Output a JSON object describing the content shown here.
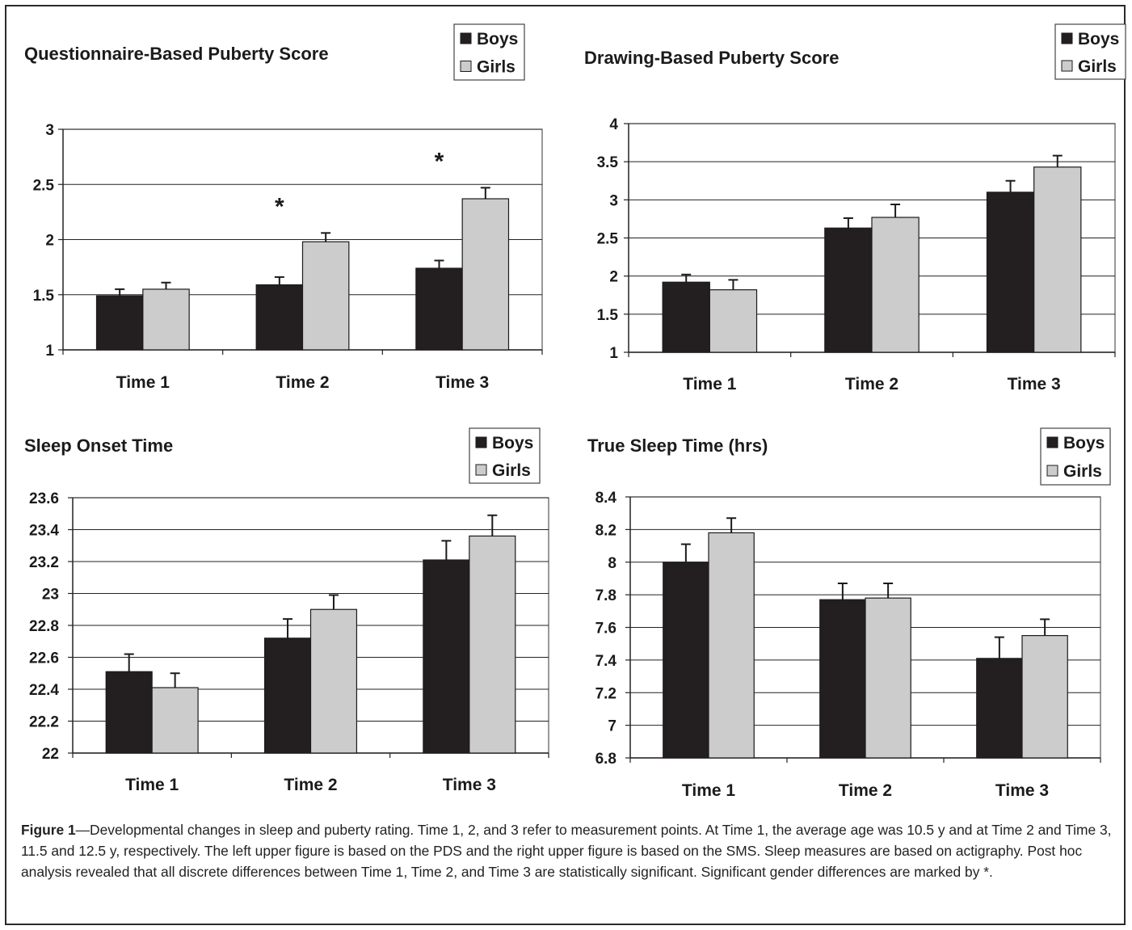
{
  "chart_data": [
    {
      "type": "bar",
      "title": "Questionnaire-Based Puberty Score",
      "categories": [
        "Time 1",
        "Time 2",
        "Time 3"
      ],
      "series": [
        {
          "name": "Boys",
          "values": [
            1.49,
            1.59,
            1.74
          ],
          "errors": [
            0.06,
            0.07,
            0.07
          ]
        },
        {
          "name": "Girls",
          "values": [
            1.55,
            1.98,
            2.37
          ],
          "errors": [
            0.06,
            0.08,
            0.1
          ]
        }
      ],
      "ylim": [
        1,
        3
      ],
      "yticks": [
        "1",
        "1.5",
        "2",
        "2.5",
        "3"
      ],
      "grid": true,
      "legend": "top-right",
      "annotations": [
        {
          "category": "Time 2",
          "text": "*"
        },
        {
          "category": "Time 3",
          "text": "*"
        }
      ]
    },
    {
      "type": "bar",
      "title": "Drawing-Based Puberty Score",
      "categories": [
        "Time 1",
        "Time 2",
        "Time 3"
      ],
      "series": [
        {
          "name": "Boys",
          "values": [
            1.92,
            2.63,
            3.1
          ],
          "errors": [
            0.1,
            0.13,
            0.15
          ]
        },
        {
          "name": "Girls",
          "values": [
            1.82,
            2.77,
            3.43
          ],
          "errors": [
            0.13,
            0.17,
            0.15
          ]
        }
      ],
      "ylim": [
        1,
        4
      ],
      "yticks": [
        "1",
        "1.5",
        "2",
        "2.5",
        "3",
        "3.5",
        "4"
      ],
      "grid": true,
      "legend": "top-right"
    },
    {
      "type": "bar",
      "title": "Sleep Onset Time",
      "categories": [
        "Time 1",
        "Time 2",
        "Time 3"
      ],
      "series": [
        {
          "name": "Boys",
          "values": [
            22.51,
            22.72,
            23.21
          ],
          "errors": [
            0.11,
            0.12,
            0.12
          ]
        },
        {
          "name": "Girls",
          "values": [
            22.41,
            22.9,
            23.36
          ],
          "errors": [
            0.09,
            0.09,
            0.13
          ]
        }
      ],
      "ylim": [
        22,
        23.6
      ],
      "yticks": [
        "22",
        "22.2",
        "22.4",
        "22.6",
        "22.8",
        "23",
        "23.2",
        "23.4",
        "23.6"
      ],
      "grid": true,
      "legend": "top-right"
    },
    {
      "type": "bar",
      "title": "True Sleep Time (hrs)",
      "categories": [
        "Time 1",
        "Time 2",
        "Time 3"
      ],
      "series": [
        {
          "name": "Boys",
          "values": [
            8.0,
            7.77,
            7.41
          ],
          "errors": [
            0.11,
            0.1,
            0.13
          ]
        },
        {
          "name": "Girls",
          "values": [
            8.18,
            7.78,
            7.55
          ],
          "errors": [
            0.09,
            0.09,
            0.1
          ]
        }
      ],
      "ylim": [
        6.8,
        8.4
      ],
      "yticks": [
        "6.8",
        "7",
        "7.2",
        "7.4",
        "7.6",
        "7.8",
        "8",
        "8.2",
        "8.4"
      ],
      "grid": true,
      "legend": "top-right"
    }
  ],
  "colors": {
    "boys": "#231f20",
    "girls": "#cccccc",
    "grid": "#222222",
    "panel_border": "#555555"
  },
  "caption": {
    "label": "Figure 1",
    "text": "—Developmental changes in sleep and puberty rating. Time 1, 2, and 3 refer to measurement points. At Time 1, the average age was 10.5 y and at Time 2 and Time 3, 11.5 and 12.5 y, respectively. The left upper figure is based on the PDS and the right upper figure is based on the SMS. Sleep measures are based on actigraphy. Post hoc analysis revealed that all discrete differences between Time 1, Time 2, and Time 3 are statistically significant. Significant gender differences are marked by *."
  }
}
